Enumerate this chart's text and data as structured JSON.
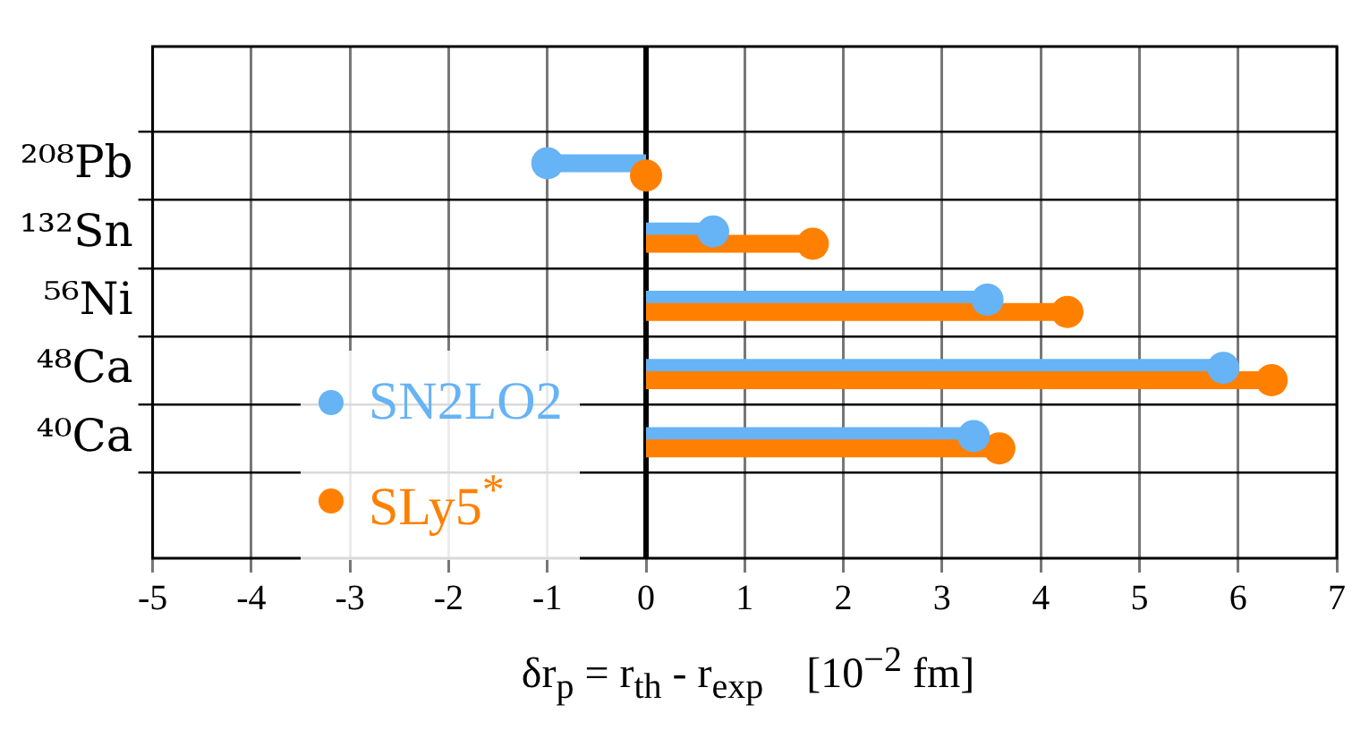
{
  "chart_data": {
    "type": "lollipop",
    "orientation": "horizontal",
    "categories": [
      "²⁰⁸Pb",
      "¹³²Sn",
      "⁵⁶Ni",
      "⁴⁸Ca",
      "⁴⁰Ca"
    ],
    "series": [
      {
        "name": "SN2LO2",
        "color": "#66b3f5",
        "values": [
          -1.0,
          0.68,
          3.46,
          5.85,
          3.32
        ]
      },
      {
        "name": "SLy5$^{*}$",
        "color": "#ff8000",
        "values": [
          0.0,
          1.69,
          4.27,
          6.34,
          3.58
        ]
      }
    ],
    "xlim": [
      -5,
      7
    ],
    "xticks": [
      -5,
      -4,
      -3,
      -2,
      -1,
      0,
      1,
      2,
      3,
      4,
      5,
      6,
      7
    ],
    "xlabel": "δr$_{p}$ = r$_{th}$ - r$_{exp}$    [10$^{−2}$ fm]",
    "grid": true,
    "legend": "bottom left"
  }
}
